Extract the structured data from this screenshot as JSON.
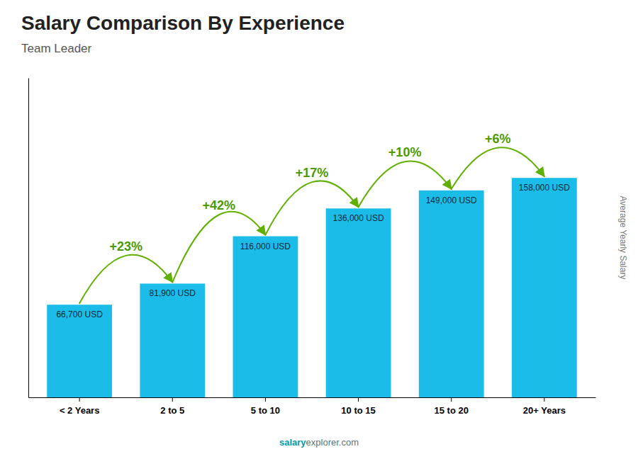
{
  "chart_data": {
    "type": "bar",
    "title": "Salary Comparison By Experience",
    "subtitle": "Team Leader",
    "ylabel": "Average Yearly Salary",
    "categories": [
      "< 2 Years",
      "2 to 5",
      "5 to 10",
      "10 to 15",
      "15 to 20",
      "20+ Years"
    ],
    "values": [
      66700,
      81900,
      116000,
      136000,
      149000,
      158000
    ],
    "value_labels": [
      "66,700 USD",
      "81,900 USD",
      "116,000 USD",
      "136,000 USD",
      "149,000 USD",
      "158,000 USD"
    ],
    "data_labels": true,
    "annotations": [
      "+23%",
      "+42%",
      "+17%",
      "+10%",
      "+6%"
    ],
    "watermark": [
      "salary",
      "explorer.com"
    ],
    "color": "#1bbde8",
    "ylim": [
      0,
      230000
    ],
    "tick_labels": "x",
    "grid": false
  }
}
